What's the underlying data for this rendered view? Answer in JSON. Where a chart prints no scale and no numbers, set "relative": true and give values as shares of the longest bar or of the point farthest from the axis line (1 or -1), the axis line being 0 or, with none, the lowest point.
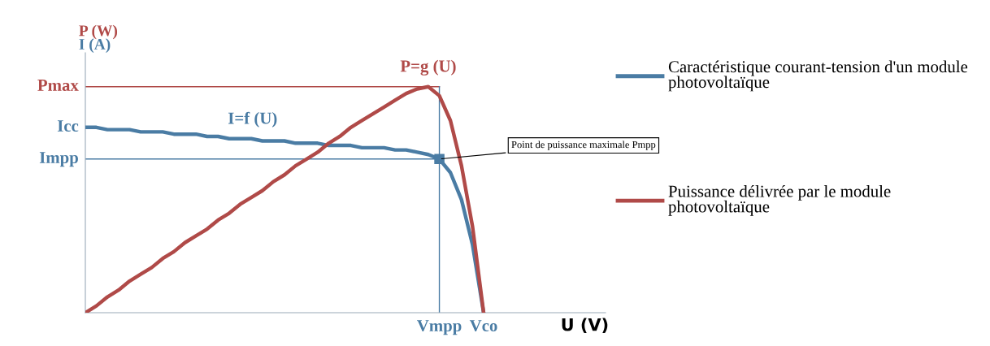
{
  "chart_data": {
    "type": "line",
    "relative": true,
    "xlabel": "U (V)",
    "ylabel": "P (W)",
    "y2label": "I (A)",
    "legend": "right",
    "marker": "none",
    "line_style": "solid",
    "categories": [
      null,
      null,
      null,
      null,
      null,
      null,
      null,
      null,
      null,
      null,
      null,
      null,
      null,
      null,
      null,
      null,
      null,
      null,
      null,
      null,
      null,
      null,
      null,
      null,
      null,
      null,
      null,
      null,
      null,
      null,
      null,
      null,
      null,
      null,
      null,
      null,
      null
    ],
    "series": [
      {
        "name": "Caractéristique courant-tension d'un module photovoltaïque",
        "color": "#4a7ca4",
        "values": [
          0.82,
          0.82,
          0.81,
          0.81,
          0.81,
          0.8,
          0.8,
          0.8,
          0.79,
          0.79,
          0.79,
          0.78,
          0.78,
          0.77,
          0.77,
          0.77,
          0.76,
          0.76,
          0.76,
          0.75,
          0.75,
          0.75,
          0.74,
          0.74,
          0.74,
          0.73,
          0.73,
          0.73,
          0.72,
          0.72,
          0.71,
          0.7,
          0.68,
          0.62,
          0.5,
          0.3,
          0
        ]
      },
      {
        "name": "Puissance délivrée par le module photovoltaïque",
        "color": "#b04a48",
        "values": [
          0,
          0.03,
          0.07,
          0.1,
          0.14,
          0.17,
          0.2,
          0.24,
          0.27,
          0.31,
          0.34,
          0.37,
          0.41,
          0.44,
          0.48,
          0.51,
          0.54,
          0.58,
          0.61,
          0.65,
          0.68,
          0.71,
          0.75,
          0.78,
          0.82,
          0.85,
          0.88,
          0.91,
          0.94,
          0.97,
          0.99,
          1.0,
          0.96,
          0.85,
          0.65,
          0.38,
          0
        ]
      }
    ],
    "ref_lines": [
      {
        "axis": "y",
        "value": 1.0,
        "label": "Pmax",
        "color": "#b04a48",
        "line_style": "solid"
      },
      {
        "axis": "y",
        "value": 0.68,
        "label": "Impp",
        "color": "#4a7ca4",
        "line_style": "solid"
      }
    ],
    "annotations": [
      "Icc",
      "I=f (U)",
      "P=g (U)",
      "Point de puissance maximale Pmpp",
      "Vmpp",
      "Vco"
    ]
  }
}
